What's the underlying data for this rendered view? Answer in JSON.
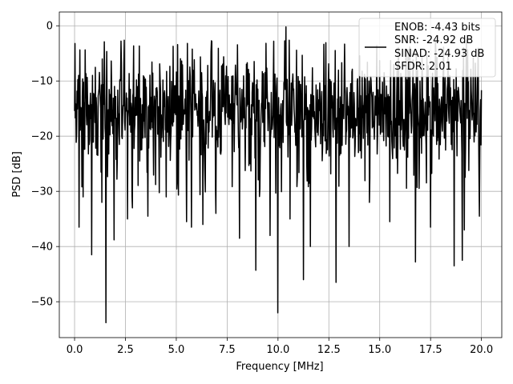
{
  "chart_data": {
    "type": "line",
    "xlabel": "Frequency [MHz]",
    "ylabel": "PSD [dB]",
    "xlim": [
      -0.75,
      21.0
    ],
    "ylim": [
      -56.5,
      2.5
    ],
    "xticks": [
      0.0,
      2.5,
      5.0,
      7.5,
      10.0,
      12.5,
      15.0,
      17.5,
      20.0
    ],
    "xtick_labels": [
      "0.0",
      "2.5",
      "5.0",
      "7.5",
      "10.0",
      "12.5",
      "15.0",
      "17.5",
      "20.0"
    ],
    "yticks": [
      0,
      -10,
      -20,
      -30,
      -40,
      -50
    ],
    "ytick_labels": [
      "0",
      "−10",
      "−20",
      "−30",
      "−40",
      "−50"
    ],
    "grid": true,
    "legend_position": "top-right",
    "legend_lines": [
      "ENOB: -4.43 bits",
      "SNR: -24.92 dB",
      "SINAD: -24.93 dB",
      "SFDR: 2.01"
    ],
    "series_color": "#000000",
    "series": [
      {
        "x_start": 0.0,
        "x_end": 20.0,
        "points": 1000,
        "typical_band": [
          -26,
          -5
        ],
        "spikes": [
          {
            "x": 0.03,
            "y": -3.2
          },
          {
            "x": 0.22,
            "y": -36.5
          },
          {
            "x": 0.42,
            "y": -31
          },
          {
            "x": 0.85,
            "y": -41.5
          },
          {
            "x": 1.35,
            "y": -32
          },
          {
            "x": 1.55,
            "y": -53.8
          },
          {
            "x": 1.95,
            "y": -38.8
          },
          {
            "x": 2.6,
            "y": -35
          },
          {
            "x": 2.85,
            "y": -33
          },
          {
            "x": 3.6,
            "y": -34.5
          },
          {
            "x": 4.5,
            "y": -31
          },
          {
            "x": 5.5,
            "y": -35.5
          },
          {
            "x": 5.75,
            "y": -36.5
          },
          {
            "x": 6.3,
            "y": -36
          },
          {
            "x": 6.95,
            "y": -34
          },
          {
            "x": 8.1,
            "y": -38.5
          },
          {
            "x": 8.9,
            "y": -44.3
          },
          {
            "x": 9.6,
            "y": -38
          },
          {
            "x": 9.98,
            "y": -52
          },
          {
            "x": 10.4,
            "y": -0.2
          },
          {
            "x": 10.6,
            "y": -35
          },
          {
            "x": 11.25,
            "y": -46
          },
          {
            "x": 11.6,
            "y": -40
          },
          {
            "x": 12.85,
            "y": -46.5
          },
          {
            "x": 13.5,
            "y": -40
          },
          {
            "x": 14.5,
            "y": -32
          },
          {
            "x": 15.5,
            "y": -35.5
          },
          {
            "x": 16.75,
            "y": -42.8
          },
          {
            "x": 17.5,
            "y": -36.5
          },
          {
            "x": 18.65,
            "y": -43.5
          },
          {
            "x": 19.05,
            "y": -42.5
          },
          {
            "x": 19.15,
            "y": -37
          },
          {
            "x": 19.9,
            "y": -34.5
          }
        ]
      }
    ]
  }
}
